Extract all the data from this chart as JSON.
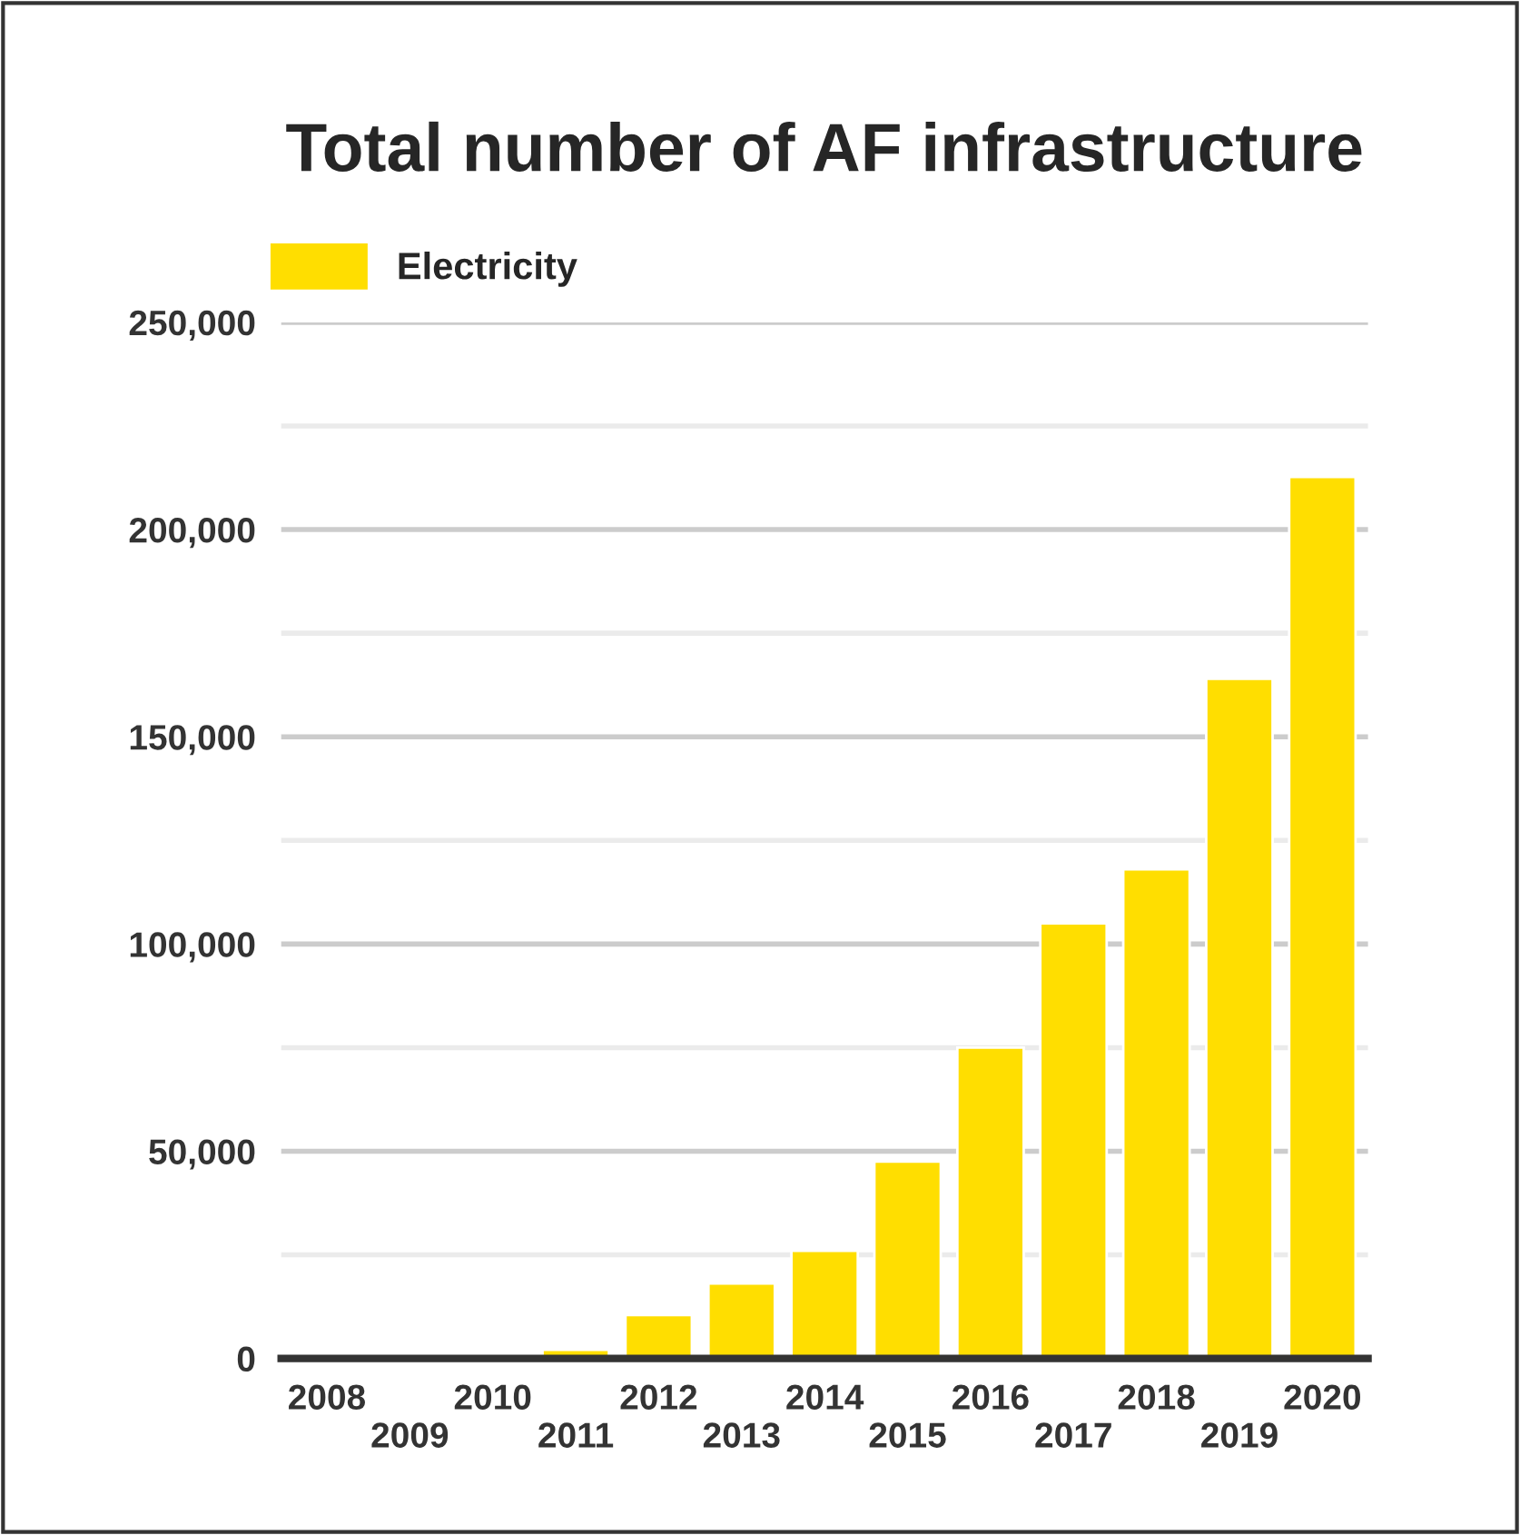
{
  "chart_data": {
    "type": "bar",
    "title": "Total number of AF infrastructure",
    "categories": [
      "2008",
      "2009",
      "2010",
      "2011",
      "2012",
      "2013",
      "2014",
      "2015",
      "2016",
      "2017",
      "2018",
      "2019",
      "2020"
    ],
    "series": [
      {
        "name": "Electricity",
        "color": "#ffde00",
        "values": [
          null,
          null,
          null,
          2100,
          10500,
          18100,
          26000,
          47500,
          75000,
          105000,
          118000,
          164000,
          212700
        ]
      }
    ],
    "ylim": [
      0,
      250000
    ],
    "yticks": [
      0,
      {
        "value": 25000,
        "label": null
      },
      "50,000",
      {
        "value": 75000,
        "label": null
      },
      {
        "value": 100000,
        "label": "100,000"
      },
      {
        "value": 125000,
        "label": null
      },
      {
        "value": 150000,
        "label": "150,000"
      },
      {
        "value": 175000,
        "label": null
      },
      {
        "value": 200000,
        "label": "200,000"
      },
      {
        "value": 225000,
        "label": null
      },
      {
        "value": 250000,
        "label": "250,000"
      }
    ],
    "grid": "y",
    "legend": "top left"
  }
}
